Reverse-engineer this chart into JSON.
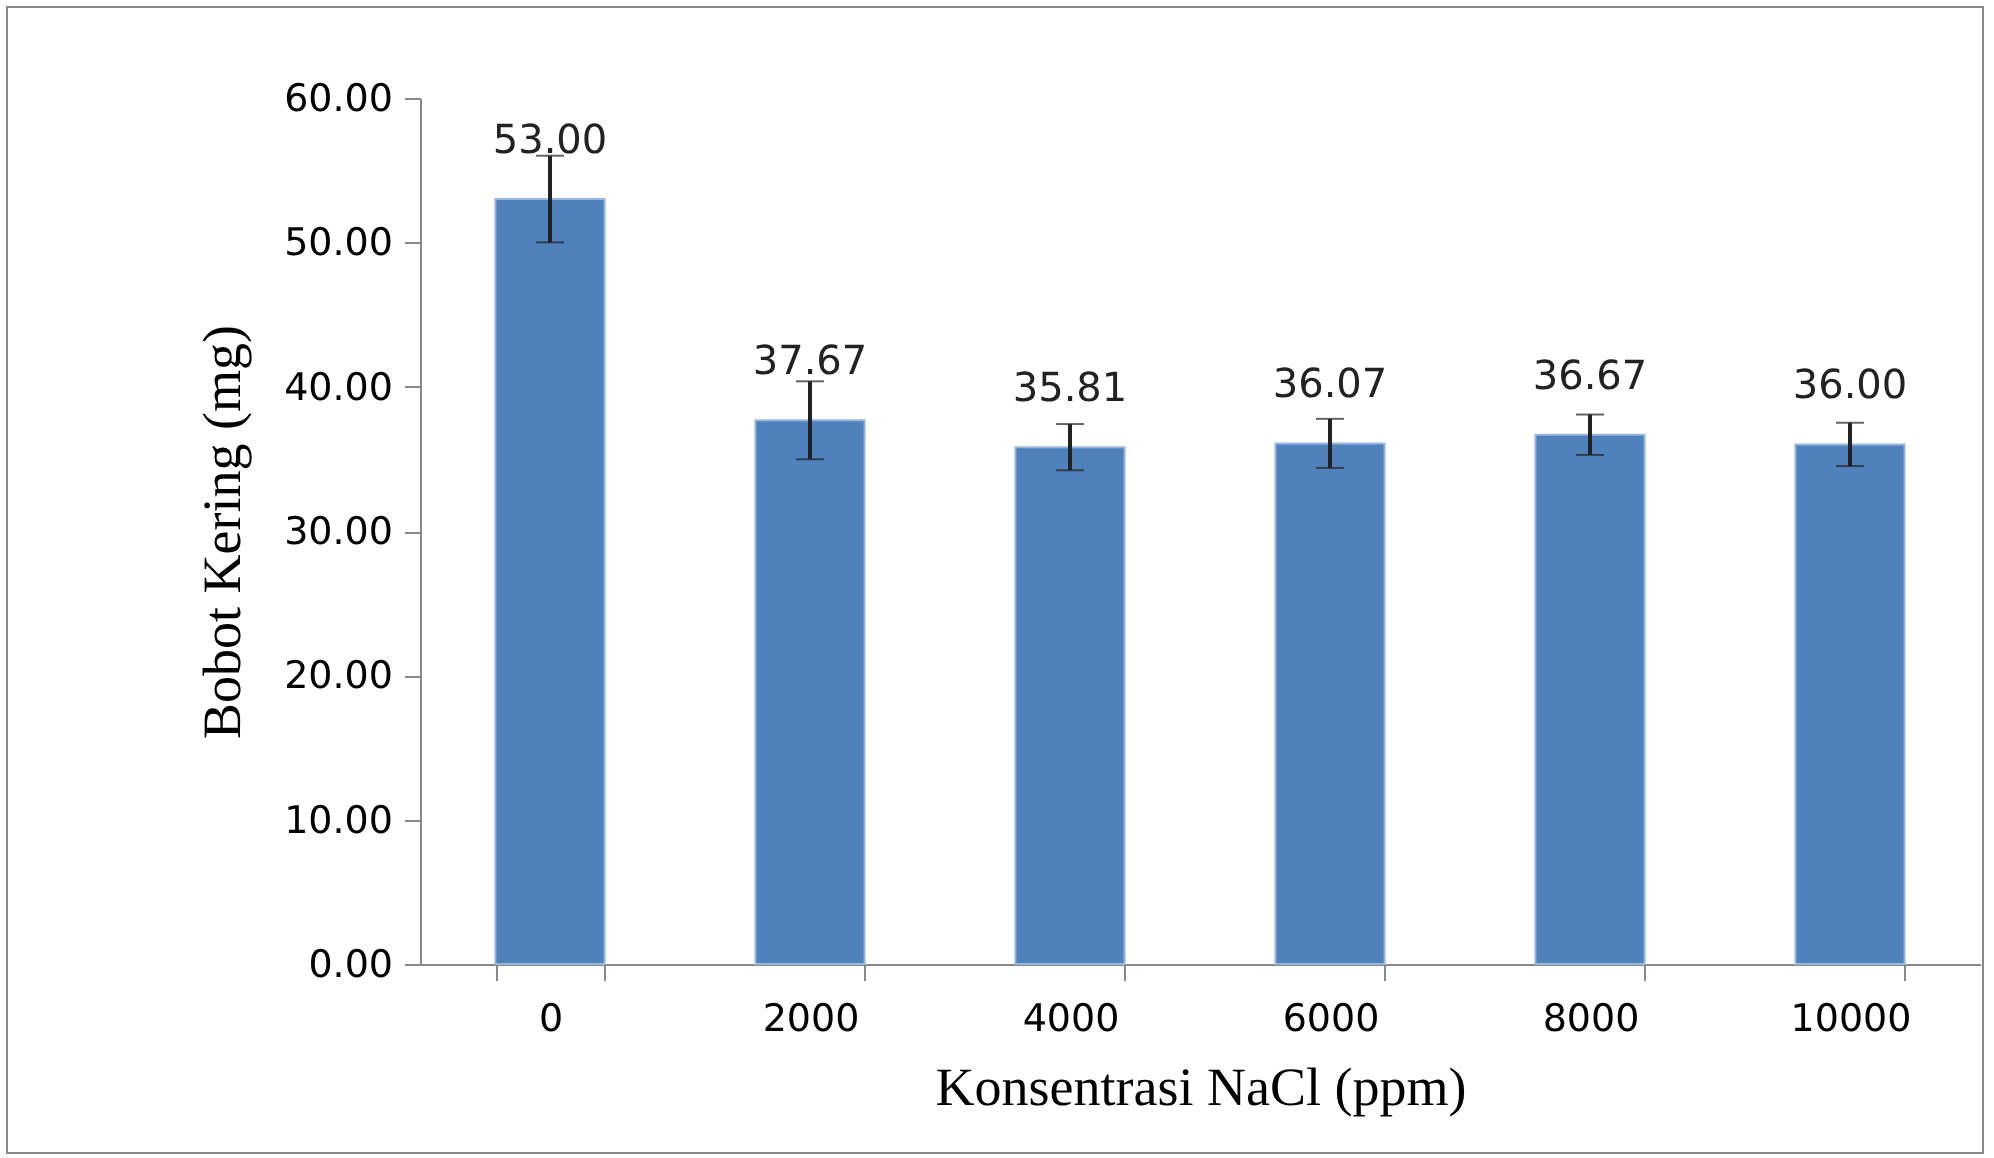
{
  "chart_data": {
    "type": "bar",
    "xlabel": "Konsentrasi NaCl (ppm)",
    "ylabel": "Bobot Kering (mg)",
    "categories": [
      "0",
      "2000",
      "4000",
      "6000",
      "8000",
      "10000"
    ],
    "values": [
      53.0,
      37.67,
      35.81,
      36.07,
      36.67,
      36.0
    ],
    "errors": [
      3.0,
      2.7,
      1.6,
      1.7,
      1.4,
      1.5
    ],
    "value_labels": [
      "53.00",
      "37.67",
      "35.81",
      "36.07",
      "36.67",
      "36.00"
    ],
    "color": "#4f81bd",
    "grid": false,
    "ylim": [
      0,
      60
    ],
    "yticks": [
      {
        "value": 0,
        "label": "0.00"
      },
      {
        "value": 10,
        "label": "10.00"
      },
      {
        "value": 20,
        "label": "20.00"
      },
      {
        "value": 30,
        "label": "30.00"
      },
      {
        "value": 40,
        "label": "40.00"
      },
      {
        "value": 50,
        "label": "50.00"
      },
      {
        "value": 60,
        "label": "60.00"
      }
    ]
  }
}
